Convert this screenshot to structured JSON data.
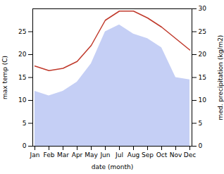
{
  "chart_data": {
    "type": "combo",
    "categories": [
      "Jan",
      "Feb",
      "Mar",
      "Apr",
      "May",
      "Jun",
      "Jul",
      "Aug",
      "Sep",
      "Oct",
      "Nov",
      "Dec"
    ],
    "series": [
      {
        "type": "area",
        "color": "#c5cff5",
        "values": [
          12.0,
          11.0,
          12.0,
          14.0,
          18.0,
          25.0,
          26.5,
          24.5,
          23.5,
          21.5,
          15.0,
          14.5
        ]
      },
      {
        "type": "line",
        "color": "#c0392b",
        "axis": "y2",
        "values": [
          17.5,
          16.5,
          17.0,
          18.5,
          22.0,
          27.5,
          29.5,
          29.5,
          28.0,
          26.0,
          23.5,
          21.0
        ]
      }
    ],
    "xlabel": "date (month)",
    "ylabel": "max temp (C)",
    "y2label": "med. precipitation (kg/m2)",
    "ylim": [
      0,
      30
    ],
    "yticks": [
      0,
      5,
      10,
      15,
      20,
      25
    ],
    "y2lim": [
      0,
      30
    ],
    "y2ticks": [
      0,
      5,
      10,
      15,
      20,
      25,
      30
    ],
    "grid": false
  }
}
